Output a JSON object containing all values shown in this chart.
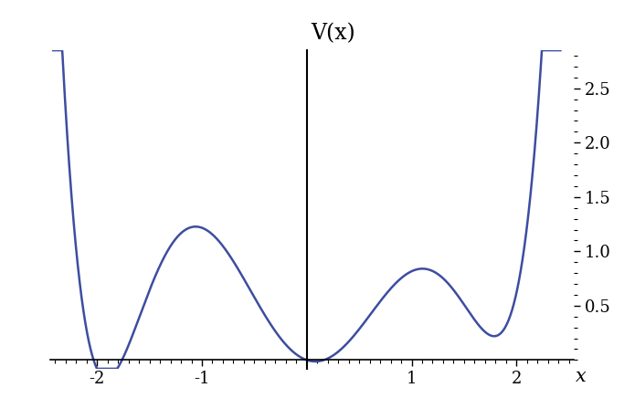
{
  "title": "V(x)",
  "xlabel": "x",
  "xlim": [
    -2.45,
    2.55
  ],
  "ylim": [
    -0.08,
    2.85
  ],
  "yticks": [
    0.5,
    1.0,
    1.5,
    2.0,
    2.5
  ],
  "xticks": [
    -2,
    -1,
    1,
    2
  ],
  "line_color": "#3D4DA0",
  "line_width": 1.8,
  "background_color": "#ffffff",
  "x_start": -2.42,
  "x_end": 2.42,
  "num_points": 3000,
  "title_fontsize": 17,
  "tick_fontsize": 13,
  "xlabel_fontsize": 15
}
